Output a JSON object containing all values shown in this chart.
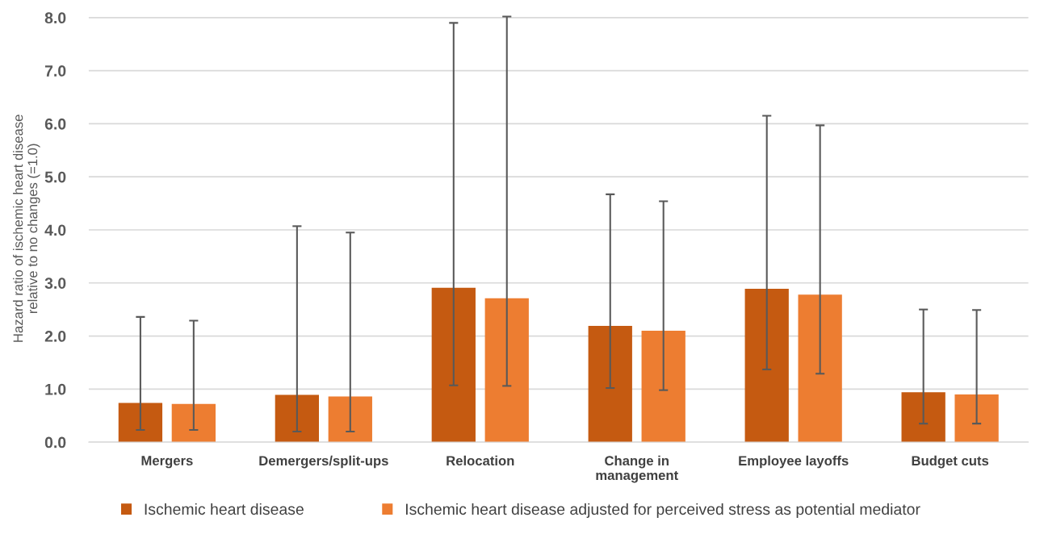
{
  "chart_data": {
    "type": "bar",
    "ylabel": "Hazard ratio of ischemic heart disease\nrelative to no changes (=1.0)",
    "categories": [
      "Mergers",
      "Demergers/split-ups",
      "Relocation",
      "Change in\nmanagement",
      "Employee layoffs",
      "Budget cuts"
    ],
    "series": [
      {
        "name": "Ischemic heart disease",
        "color": "#c55a11",
        "values": [
          0.74,
          0.89,
          2.91,
          2.19,
          2.89,
          0.94
        ],
        "errors": [
          [
            0.23,
            2.36
          ],
          [
            0.2,
            4.07
          ],
          [
            1.07,
            7.9
          ],
          [
            1.02,
            4.67
          ],
          [
            1.37,
            6.15
          ],
          [
            0.35,
            2.5
          ]
        ]
      },
      {
        "name": "Ischemic heart disease adjusted for perceived stress as potential mediator",
        "color": "#ed7d31",
        "values": [
          0.72,
          0.86,
          2.71,
          2.1,
          2.78,
          0.9
        ],
        "errors": [
          [
            0.23,
            2.29
          ],
          [
            0.2,
            3.95
          ],
          [
            1.06,
            8.02
          ],
          [
            0.98,
            4.54
          ],
          [
            1.29,
            5.97
          ],
          [
            0.35,
            2.49
          ]
        ]
      }
    ],
    "ylim": [
      0,
      8.05
    ],
    "yticks": [
      {
        "value": 0,
        "label": "0.0"
      },
      {
        "value": 1,
        "label": "1.0"
      },
      {
        "value": 2,
        "label": "2.0"
      },
      {
        "value": 3,
        "label": "3.0"
      },
      {
        "value": 4,
        "label": "4.0"
      },
      {
        "value": 5,
        "label": "5.0"
      },
      {
        "value": 6,
        "label": "6.0"
      },
      {
        "value": 7,
        "label": "7.0"
      },
      {
        "value": 8,
        "label": "8.0"
      }
    ],
    "grid": "y",
    "legend": "bottom"
  }
}
